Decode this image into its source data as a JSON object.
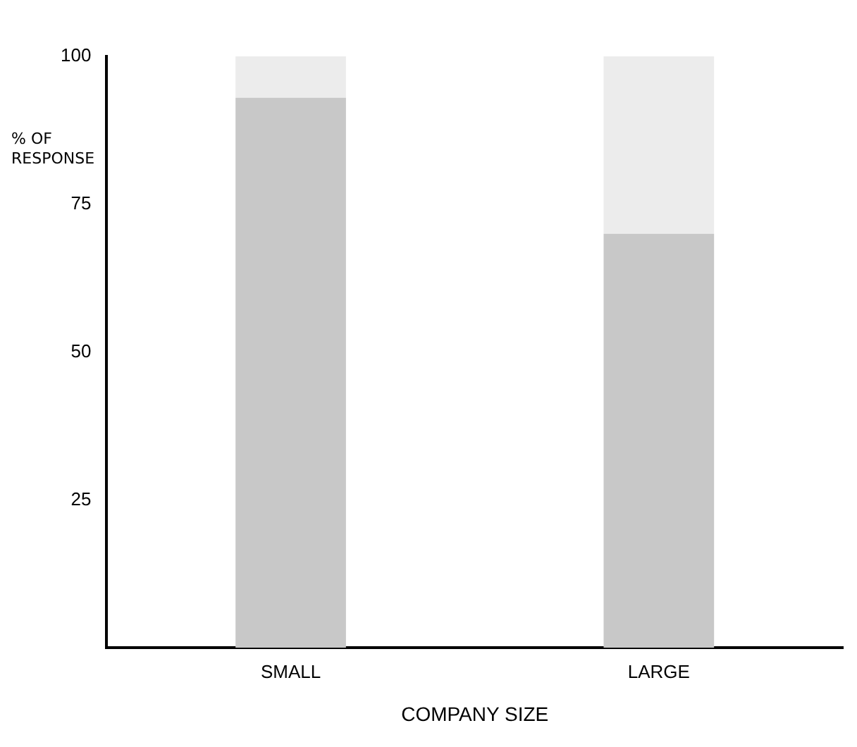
{
  "chart_data": {
    "type": "bar",
    "stacked": true,
    "xlabel": "COMPANY SIZE",
    "ylabel": "% OF RESPONSE",
    "categories": [
      "SMALL",
      "LARGE"
    ],
    "series": [
      {
        "color": "#c8c8c8",
        "values": [
          93,
          70
        ]
      },
      {
        "color": "#ececec",
        "values": [
          7,
          30
        ]
      }
    ],
    "ylim": [
      0,
      100
    ],
    "yticks": [
      25,
      50,
      75,
      100
    ],
    "grid": false,
    "legend": false
  }
}
